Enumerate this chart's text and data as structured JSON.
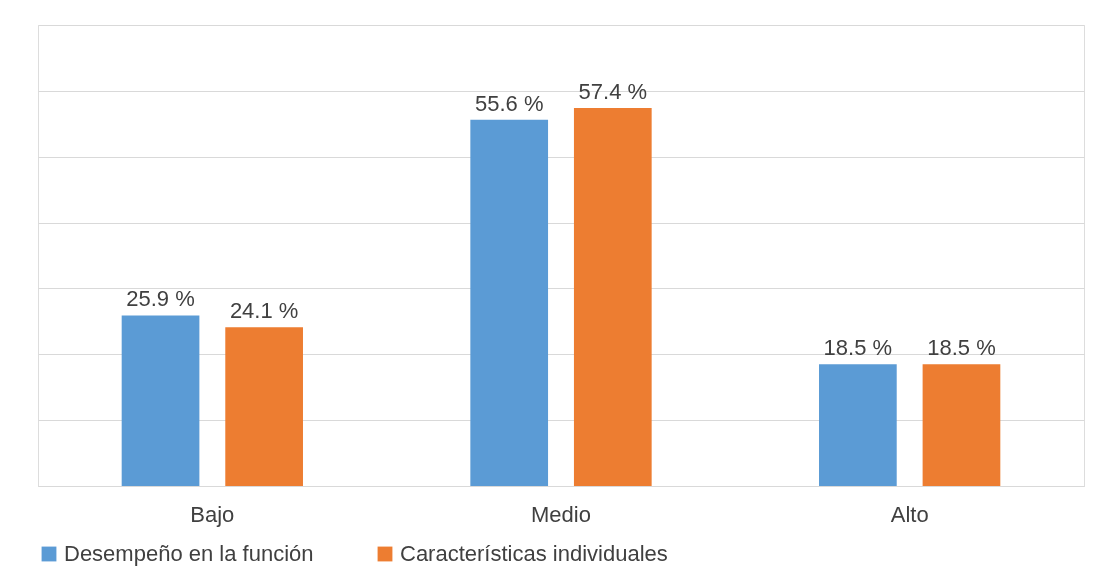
{
  "chart_data": {
    "type": "bar",
    "categories": [
      "Bajo",
      "Medio",
      "Alto"
    ],
    "series": [
      {
        "name": "Desempeño en la función",
        "color": "#5b9bd5",
        "values": [
          25.9,
          55.6,
          18.5
        ],
        "value_labels": [
          "25.9 %",
          "55.6 %",
          "18.5 %"
        ]
      },
      {
        "name": "Características individuales",
        "color": "#ed7d31",
        "values": [
          24.1,
          57.4,
          18.5
        ],
        "value_labels": [
          "24.1 %",
          "57.4 %",
          "18.5 %"
        ]
      }
    ],
    "ylim": [
      0,
      70
    ],
    "yticks": [
      {
        "value": 0,
        "label": null
      },
      {
        "value": 10,
        "label": null
      },
      {
        "value": 20,
        "label": null
      },
      {
        "value": 30,
        "label": null
      },
      {
        "value": 40,
        "label": null
      },
      {
        "value": 50,
        "label": null
      },
      {
        "value": 60,
        "label": null
      },
      {
        "value": 70,
        "label": null
      }
    ],
    "tick_labels": "x",
    "grid": "y",
    "legend": "bottom"
  }
}
